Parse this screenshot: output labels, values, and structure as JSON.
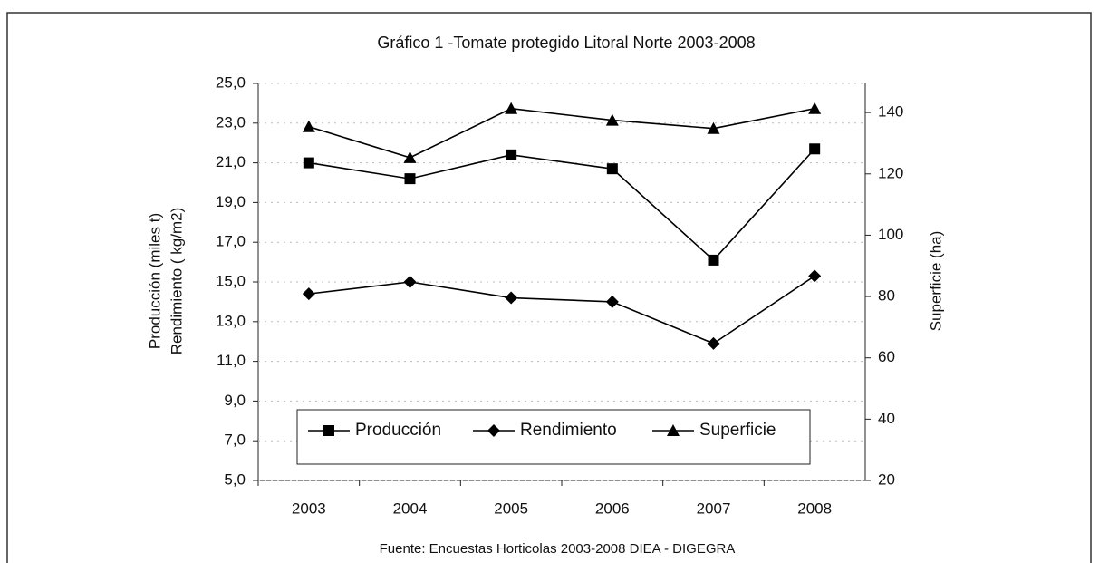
{
  "chart_data": {
    "type": "line",
    "title": "Gráfico 1 -Tomate protegido Litoral Norte 2003-2008",
    "ylabel": [
      "Producción (miles t)",
      "Rendimiento ( kg/m2)"
    ],
    "y2label": "Superficie (ha)",
    "source": "Fuente: Encuestas Horticolas 2003-2008 DIEA - DIGEGRA",
    "categories": [
      "2003",
      "2004",
      "2005",
      "2006",
      "2007",
      "2008"
    ],
    "series": [
      {
        "name": "Producción",
        "color": "#000000",
        "marker": "square",
        "values": [
          21.0,
          20.2,
          21.4,
          20.7,
          16.1,
          21.7
        ]
      },
      {
        "name": "Rendimiento",
        "color": "#000000",
        "marker": "diamond",
        "values": [
          14.4,
          15.0,
          14.2,
          14.0,
          11.9,
          15.3
        ]
      },
      {
        "name": "Superficie",
        "color": "#000000",
        "marker": "triangle",
        "axis": "y2",
        "values": [
          135.4,
          125.3,
          141.3,
          137.5,
          134.8,
          141.3
        ]
      }
    ],
    "ylim": [
      5,
      25
    ],
    "yticks": [
      {
        "value": 5,
        "label": "5,0"
      },
      {
        "value": 7,
        "label": "7,0"
      },
      {
        "value": 9,
        "label": "9,0"
      },
      {
        "value": 11,
        "label": "11,0"
      },
      {
        "value": 13,
        "label": "13,0"
      },
      {
        "value": 15,
        "label": "15,0"
      },
      {
        "value": 17,
        "label": "17,0"
      },
      {
        "value": 19,
        "label": "19,0"
      },
      {
        "value": 21,
        "label": "21,0"
      },
      {
        "value": 23,
        "label": "23,0"
      },
      {
        "value": 25,
        "label": "25,0"
      }
    ],
    "y2lim": [
      20,
      149.5
    ],
    "y2ticks": [
      20,
      40,
      60,
      80,
      100,
      120,
      140
    ],
    "legend": "bottom"
  }
}
